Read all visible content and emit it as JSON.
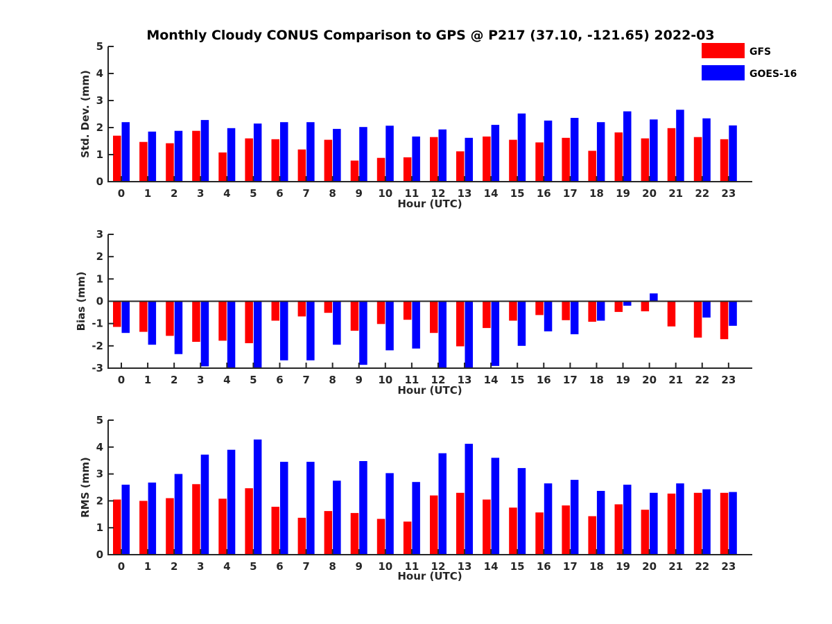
{
  "title": "Monthly Cloudy CONUS Comparison to GPS @ P217 (37.10, -121.65) 2022-03",
  "legend": [
    {
      "label": "GFS",
      "color": "#ff0000"
    },
    {
      "label": "GOES-16",
      "color": "#0000ff"
    }
  ],
  "chart_data": [
    {
      "type": "bar",
      "title": "Monthly Cloudy CONUS Comparison to GPS @ P217 (37.10, -121.65) 2022-03",
      "xlabel": "Hour (UTC)",
      "ylabel": "Std. Dev. (mm)",
      "ylim": [
        0,
        5
      ],
      "yticks": [
        0,
        1,
        2,
        3,
        4,
        5
      ],
      "categories": [
        "0",
        "1",
        "2",
        "3",
        "4",
        "5",
        "6",
        "7",
        "8",
        "9",
        "10",
        "11",
        "12",
        "13",
        "14",
        "15",
        "16",
        "17",
        "18",
        "19",
        "20",
        "21",
        "22",
        "23"
      ],
      "series": [
        {
          "name": "GFS",
          "color": "#ff0000",
          "values": [
            1.7,
            1.47,
            1.42,
            1.88,
            1.08,
            1.6,
            1.57,
            1.19,
            1.55,
            0.78,
            0.88,
            0.9,
            1.65,
            1.12,
            1.67,
            1.55,
            1.45,
            1.62,
            1.14,
            1.82,
            1.6,
            1.98,
            1.65,
            1.57
          ]
        },
        {
          "name": "GOES-16",
          "color": "#0000ff",
          "values": [
            2.2,
            1.85,
            1.88,
            2.28,
            1.98,
            2.15,
            2.2,
            2.2,
            1.95,
            2.02,
            2.07,
            1.67,
            1.93,
            1.62,
            2.1,
            2.52,
            2.26,
            2.36,
            2.2,
            2.6,
            2.3,
            2.66,
            2.34,
            2.08
          ]
        }
      ]
    },
    {
      "type": "bar",
      "xlabel": "Hour (UTC)",
      "ylabel": "Bias (mm)",
      "ylim": [
        -3,
        3
      ],
      "yticks": [
        -3,
        -2,
        -1,
        0,
        1,
        2,
        3
      ],
      "zero_line": true,
      "categories": [
        "0",
        "1",
        "2",
        "3",
        "4",
        "5",
        "6",
        "7",
        "8",
        "9",
        "10",
        "11",
        "12",
        "13",
        "14",
        "15",
        "16",
        "17",
        "18",
        "19",
        "20",
        "21",
        "22",
        "23"
      ],
      "series": [
        {
          "name": "GFS",
          "color": "#ff0000",
          "values": [
            -1.15,
            -1.37,
            -1.55,
            -1.82,
            -1.77,
            -1.88,
            -0.87,
            -0.68,
            -0.52,
            -1.32,
            -1.02,
            -0.83,
            -1.42,
            -2.02,
            -1.2,
            -0.87,
            -0.62,
            -0.85,
            -0.92,
            -0.48,
            -0.45,
            -1.13,
            -1.63,
            -1.7
          ]
        },
        {
          "name": "GOES-16",
          "color": "#0000ff",
          "values": [
            -1.42,
            -1.95,
            -2.37,
            -2.92,
            -3.0,
            -3.0,
            -2.65,
            -2.65,
            -1.95,
            -2.85,
            -2.2,
            -2.12,
            -3.0,
            -3.0,
            -2.9,
            -2.0,
            -1.35,
            -1.48,
            -0.87,
            -0.2,
            0.35,
            0.0,
            -0.73,
            -1.1
          ]
        }
      ]
    },
    {
      "type": "bar",
      "xlabel": "Hour (UTC)",
      "ylabel": "RMS (mm)",
      "ylim": [
        0,
        5
      ],
      "yticks": [
        0,
        1,
        2,
        3,
        4,
        5
      ],
      "categories": [
        "0",
        "1",
        "2",
        "3",
        "4",
        "5",
        "6",
        "7",
        "8",
        "9",
        "10",
        "11",
        "12",
        "13",
        "14",
        "15",
        "16",
        "17",
        "18",
        "19",
        "20",
        "21",
        "22",
        "23"
      ],
      "series": [
        {
          "name": "GFS",
          "color": "#ff0000",
          "values": [
            2.05,
            2.0,
            2.1,
            2.62,
            2.08,
            2.47,
            1.78,
            1.37,
            1.62,
            1.55,
            1.33,
            1.23,
            2.2,
            2.3,
            2.05,
            1.75,
            1.57,
            1.83,
            1.43,
            1.87,
            1.67,
            2.27,
            2.3,
            2.3
          ]
        },
        {
          "name": "GOES-16",
          "color": "#0000ff",
          "values": [
            2.6,
            2.68,
            3.0,
            3.72,
            3.9,
            4.28,
            3.45,
            3.45,
            2.75,
            3.48,
            3.03,
            2.7,
            3.77,
            4.12,
            3.6,
            3.22,
            2.65,
            2.78,
            2.37,
            2.6,
            2.3,
            2.65,
            2.43,
            2.33
          ]
        }
      ]
    }
  ]
}
